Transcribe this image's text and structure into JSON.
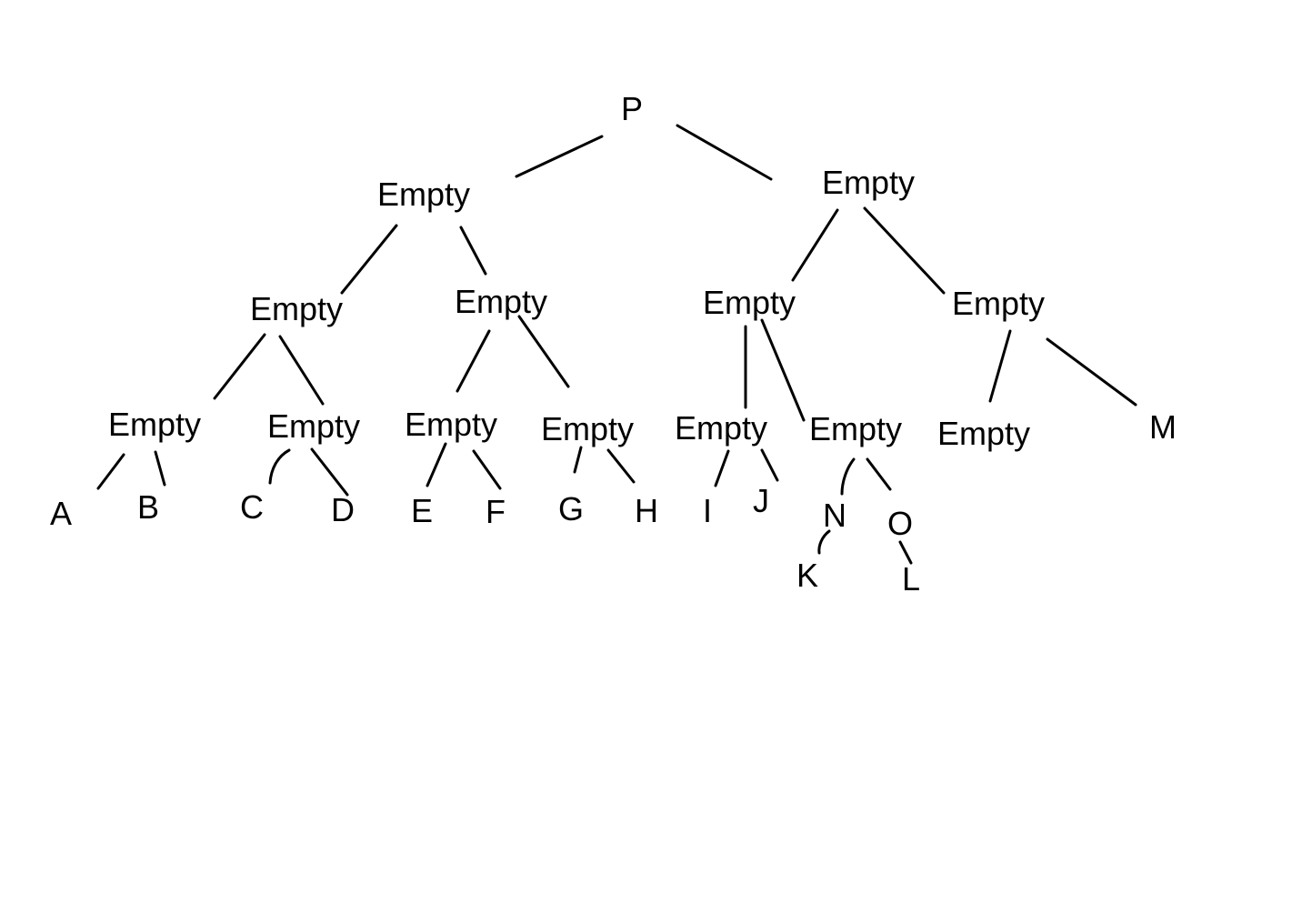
{
  "tree": {
    "root": "P",
    "level1": [
      "Empty",
      "Empty"
    ],
    "level2": [
      "Empty",
      "Empty",
      "Empty",
      "Empty"
    ],
    "level3": [
      "Empty",
      "Empty",
      "Empty",
      "Empty",
      "Empty",
      "Empty",
      "Empty",
      "M"
    ],
    "level4": [
      "A",
      "B",
      "C",
      "D",
      "E",
      "F",
      "G",
      "H",
      "I",
      "J",
      "N",
      "O"
    ],
    "level5": [
      "K",
      "L"
    ]
  },
  "colors": {
    "lines": "#000000",
    "text": "#000000",
    "background": "#ffffff"
  }
}
